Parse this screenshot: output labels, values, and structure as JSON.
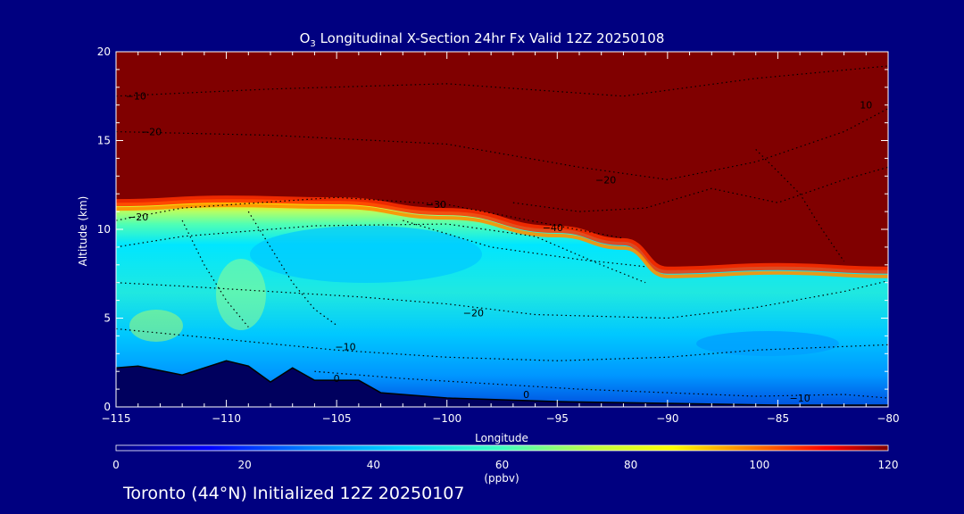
{
  "title_main": "O",
  "title_sub": "3",
  "title_rest": " Longitudinal X-Section 24hr  Fx Valid 12Z 20250108",
  "footer": "Toronto (44°N) Initialized 12Z 20250107",
  "colors": {
    "background": "#000080",
    "stratosphere": "#800000",
    "terrain": "#000060"
  },
  "chart_data": {
    "type": "heatmap",
    "xlabel": "Longitude",
    "ylabel": "Altitude (km)",
    "xlim": [
      -115,
      -80
    ],
    "ylim": [
      0,
      20
    ],
    "x_ticks": [
      -115,
      -110,
      -105,
      -100,
      -95,
      -90,
      -85,
      -80
    ],
    "x_tick_labels": [
      "−115",
      "−110",
      "−105",
      "−100",
      "−95",
      "−90",
      "−85",
      "−80"
    ],
    "y_ticks": [
      0,
      5,
      10,
      15,
      20
    ],
    "y_tick_labels": [
      "0",
      "5",
      "10",
      "15",
      "20"
    ],
    "colorbar": {
      "min": 0,
      "max": 120,
      "ticks": [
        "0",
        "20",
        "40",
        "60",
        "80",
        "100",
        "120"
      ],
      "unit": "(ppbv)"
    },
    "tropopause_km": [
      {
        "lon": -115,
        "alt": 11.5
      },
      {
        "lon": -110,
        "alt": 11.7
      },
      {
        "lon": -105,
        "alt": 11.6
      },
      {
        "lon": -100,
        "alt": 11.0
      },
      {
        "lon": -95,
        "alt": 10.0
      },
      {
        "lon": -92,
        "alt": 9.3
      },
      {
        "lon": -90,
        "alt": 7.7
      },
      {
        "lon": -85,
        "alt": 7.9
      },
      {
        "lon": -80,
        "alt": 7.7
      }
    ],
    "terrain_km": [
      {
        "lon": -115,
        "alt": 2.2
      },
      {
        "lon": -114,
        "alt": 2.3
      },
      {
        "lon": -112,
        "alt": 1.8
      },
      {
        "lon": -110,
        "alt": 2.6
      },
      {
        "lon": -109,
        "alt": 2.3
      },
      {
        "lon": -108,
        "alt": 1.4
      },
      {
        "lon": -107,
        "alt": 2.2
      },
      {
        "lon": -106,
        "alt": 1.5
      },
      {
        "lon": -104,
        "alt": 1.5
      },
      {
        "lon": -103,
        "alt": 0.8
      },
      {
        "lon": -100,
        "alt": 0.5
      },
      {
        "lon": -95,
        "alt": 0.3
      },
      {
        "lon": -90,
        "alt": 0.2
      },
      {
        "lon": -85,
        "alt": 0.1
      },
      {
        "lon": -80,
        "alt": 0.1
      }
    ],
    "contour_labels": [
      {
        "text": "−10",
        "lon": -114.1,
        "alt": 17.3
      },
      {
        "text": "−20",
        "lon": -113.4,
        "alt": 15.3
      },
      {
        "text": "−20",
        "lon": -114.0,
        "alt": 10.5
      },
      {
        "text": "−30",
        "lon": -100.5,
        "alt": 11.2
      },
      {
        "text": "−40",
        "lon": -95.2,
        "alt": 9.9
      },
      {
        "text": "−20",
        "lon": -92.8,
        "alt": 12.6
      },
      {
        "text": "−20",
        "lon": -98.8,
        "alt": 5.1
      },
      {
        "text": "−10",
        "lon": -104.6,
        "alt": 3.2
      },
      {
        "text": "0",
        "lon": -105.0,
        "alt": 1.4
      },
      {
        "text": "0",
        "lon": -96.4,
        "alt": 0.5
      },
      {
        "text": "−10",
        "lon": -84.0,
        "alt": 0.3
      },
      {
        "text": "10",
        "lon": -81.0,
        "alt": 16.8
      }
    ]
  }
}
